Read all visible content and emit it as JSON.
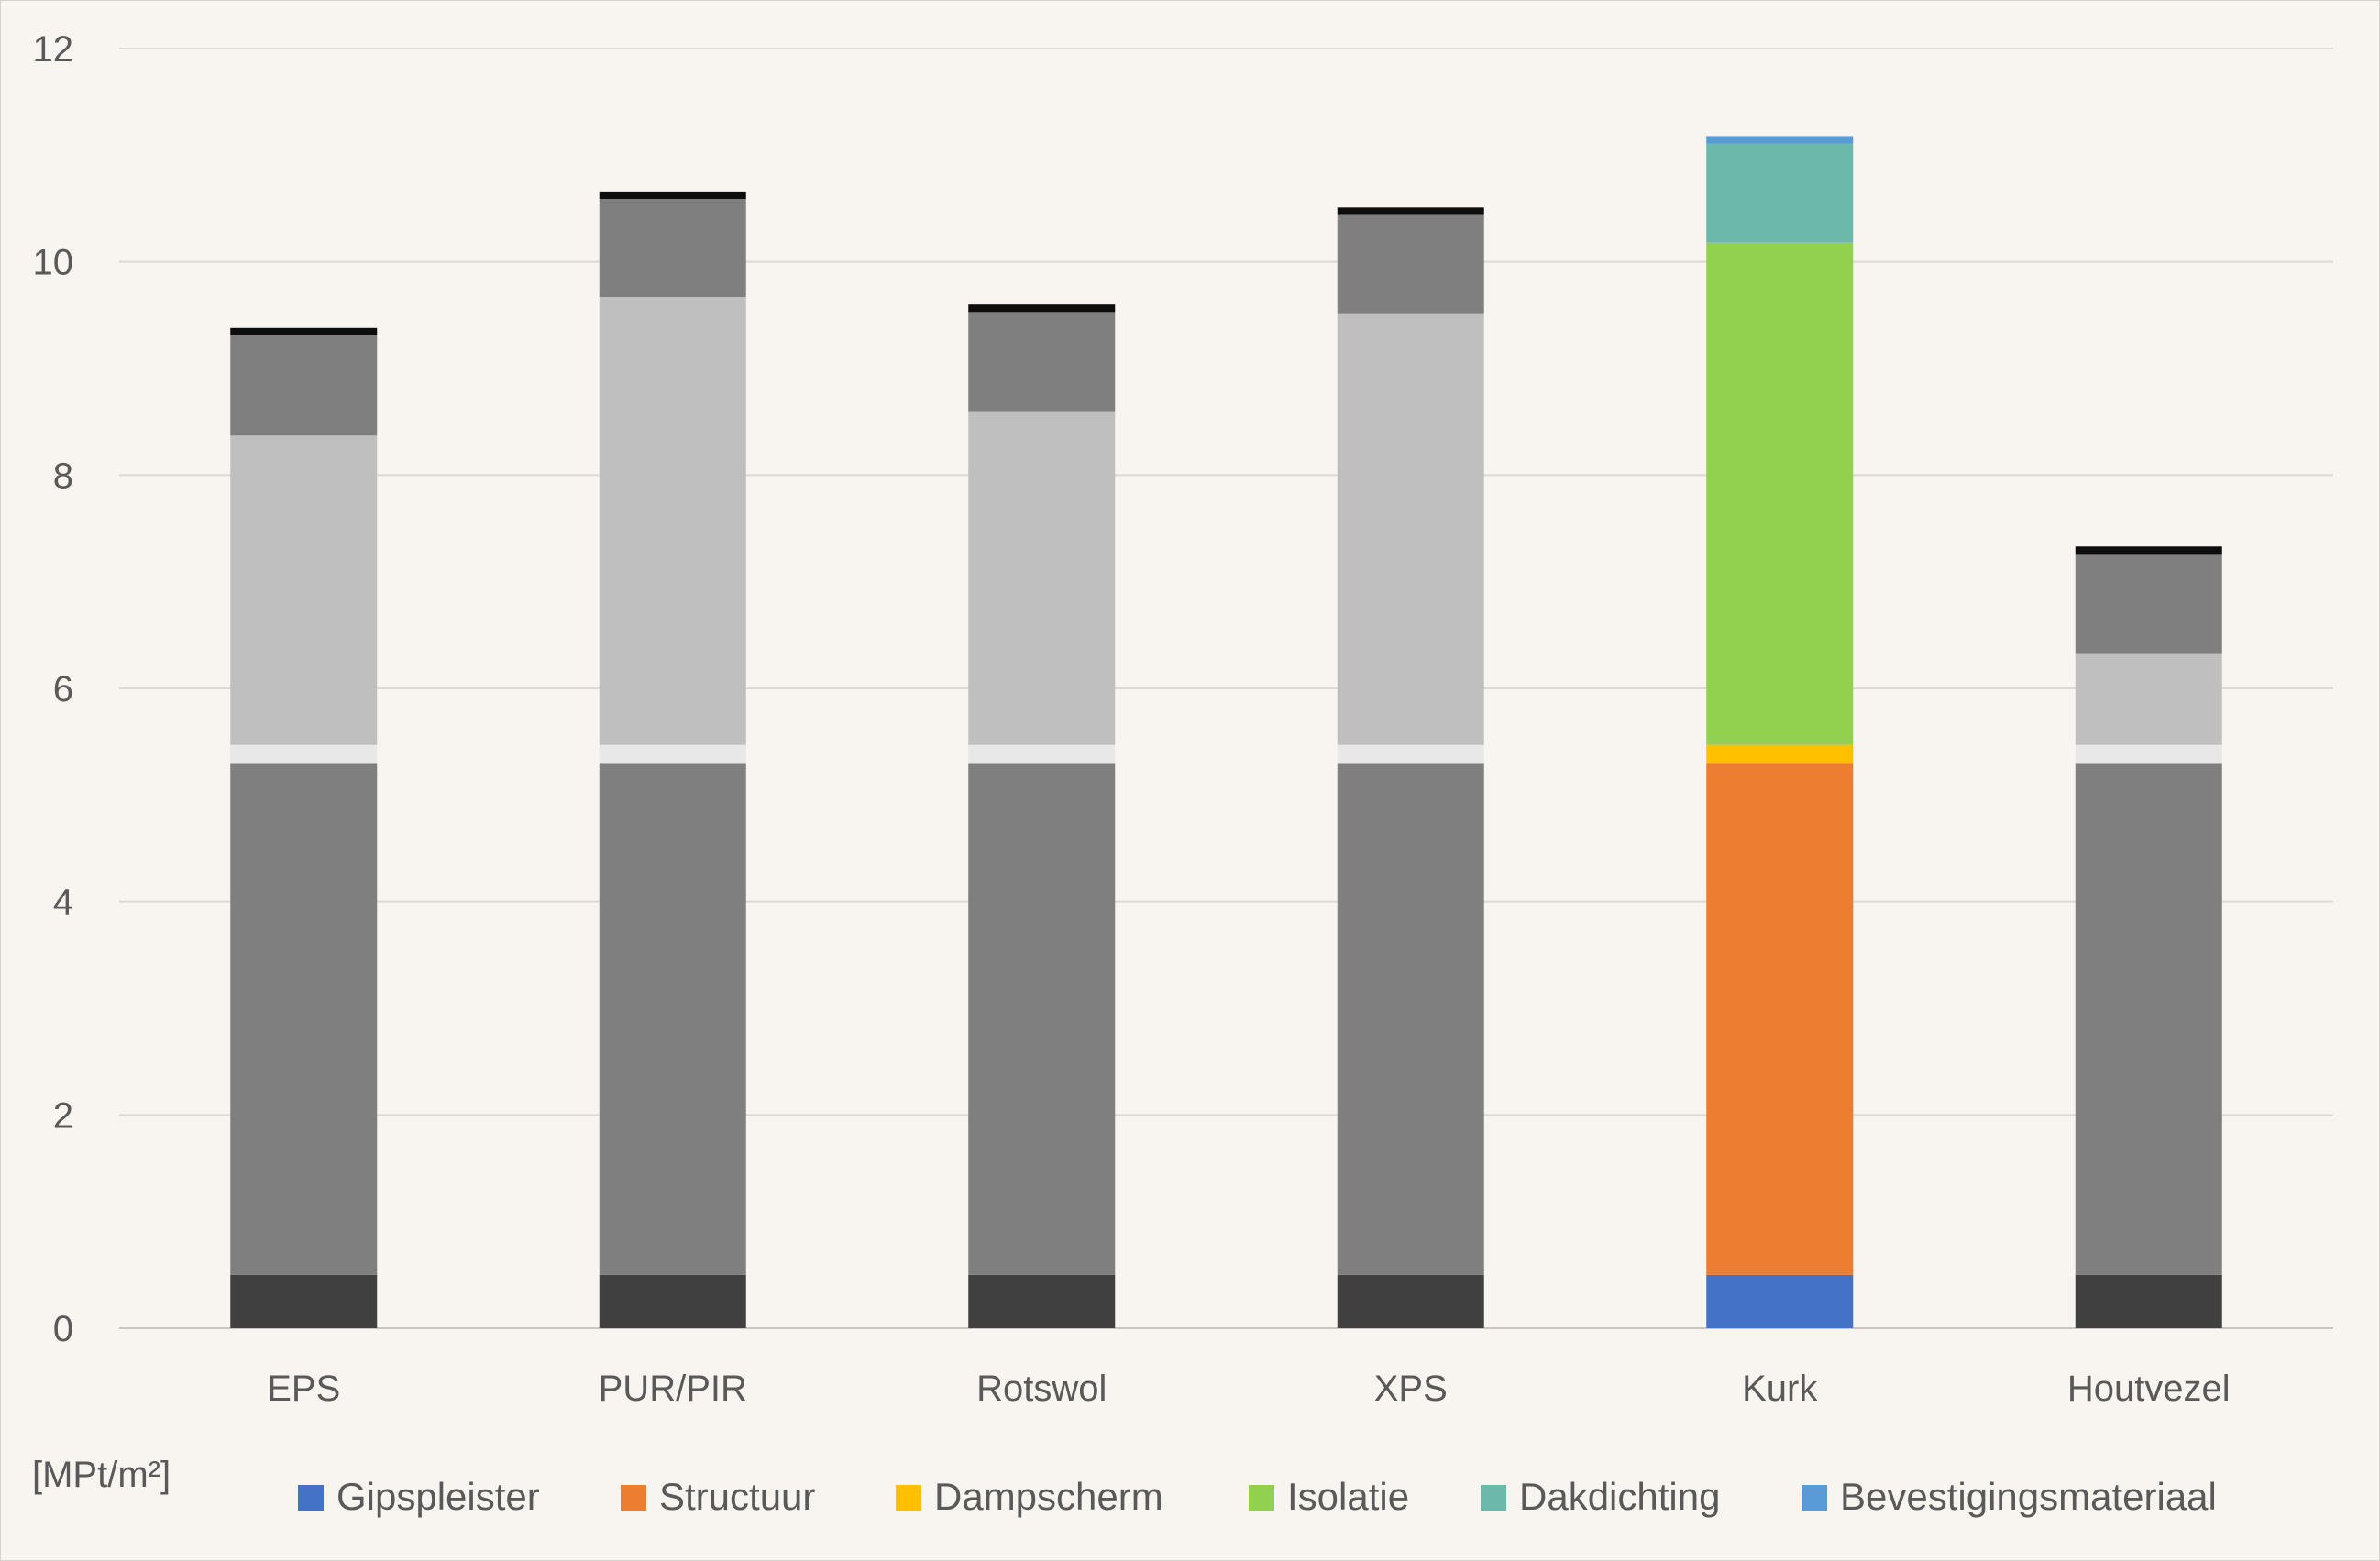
{
  "chart_data": {
    "type": "bar",
    "stacked": true,
    "categories": [
      "EPS",
      "PUR/PIR",
      "Rotswol",
      "XPS",
      "Kurk",
      "Houtvezel"
    ],
    "ylim": [
      0,
      12
    ],
    "yticks": [
      0,
      2,
      4,
      6,
      8,
      10,
      12
    ],
    "ylabel": "[MPt/m²]",
    "xlabel": "",
    "title": "",
    "grid": true,
    "legend_position": "bottom",
    "highlight_category": "Kurk",
    "muted_colors": [
      "#404040",
      "#7f7f7f",
      "#e8e8e8",
      "#bfbfbf",
      "#7f7f7f",
      "#0d0d0d"
    ],
    "series": [
      {
        "name": "Gipspleister",
        "color": "#4472c4",
        "values": [
          0.5,
          0.5,
          0.5,
          0.5,
          0.5,
          0.5
        ]
      },
      {
        "name": "Structuur",
        "color": "#ed7d31",
        "values": [
          4.8,
          4.8,
          4.8,
          4.8,
          4.8,
          4.8
        ]
      },
      {
        "name": "Dampscherm",
        "color": "#ffc000",
        "values": [
          0.17,
          0.17,
          0.17,
          0.17,
          0.17,
          0.17
        ]
      },
      {
        "name": "Isolatie",
        "color": "#92d050",
        "values": [
          2.9,
          4.2,
          3.13,
          4.04,
          4.71,
          0.86
        ]
      },
      {
        "name": "Dakdichting",
        "color": "#6cb8ab",
        "values": [
          0.94,
          0.92,
          0.93,
          0.93,
          0.93,
          0.93
        ]
      },
      {
        "name": "Bevestigingsmateriaal",
        "color": "#5b9bd5",
        "values": [
          0.07,
          0.07,
          0.07,
          0.07,
          0.07,
          0.07
        ]
      }
    ]
  }
}
